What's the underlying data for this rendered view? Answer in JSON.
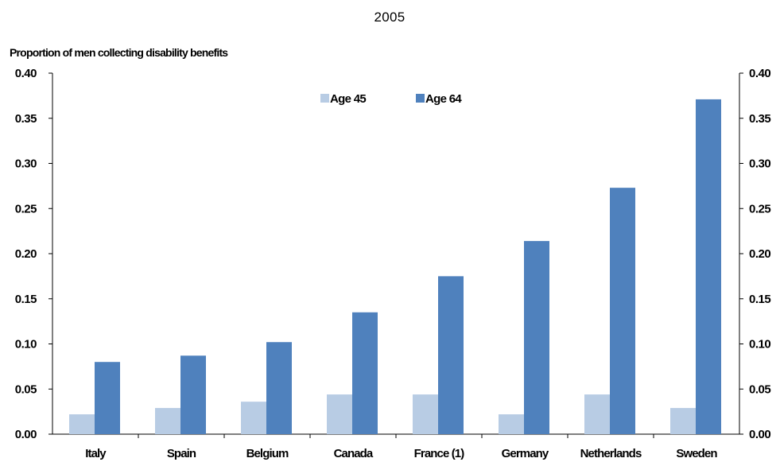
{
  "chart_data": {
    "type": "bar",
    "title": "2005",
    "ylabel": "Proportion of men collecting disability benefits",
    "xlabel": "",
    "categories": [
      "Italy",
      "Spain",
      "Belgium",
      "Canada",
      "France (1)",
      "Germany",
      "Netherlands",
      "Sweden"
    ],
    "series": [
      {
        "name": "Age 45",
        "color": "#b8cce4",
        "values": [
          0.022,
          0.029,
          0.036,
          0.044,
          0.044,
          0.022,
          0.044,
          0.029
        ]
      },
      {
        "name": "Age 64",
        "color": "#4f81bd",
        "values": [
          0.08,
          0.087,
          0.102,
          0.135,
          0.175,
          0.214,
          0.273,
          0.371
        ]
      }
    ],
    "ylim": [
      0,
      0.4
    ],
    "yticks": [
      "0.00",
      "0.05",
      "0.10",
      "0.15",
      "0.20",
      "0.25",
      "0.30",
      "0.35",
      "0.40"
    ],
    "secondary_yticks": [
      "0.00",
      "0.05",
      "0.10",
      "0.15",
      "0.20",
      "0.25",
      "0.30",
      "0.35",
      "0.40"
    ],
    "grid": false,
    "legend_position": "top-center"
  }
}
